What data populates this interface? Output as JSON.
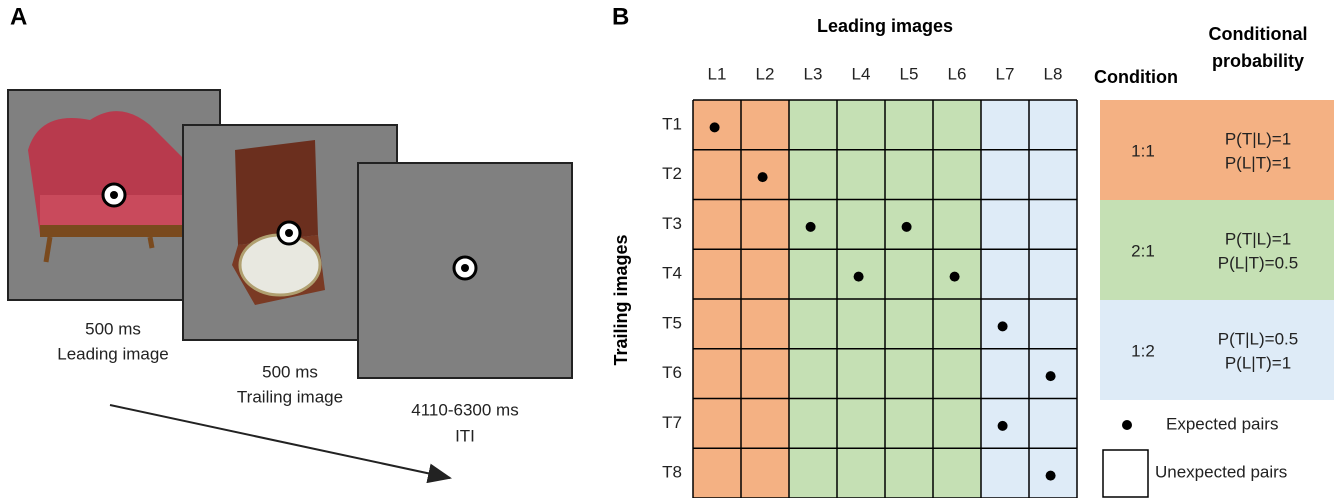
{
  "panel_a": {
    "label": "A",
    "frames": [
      {
        "duration": "500 ms",
        "caption": "Leading image"
      },
      {
        "duration": "500 ms",
        "caption": "Trailing image"
      },
      {
        "duration": "4110-6300 ms",
        "caption": "ITI"
      }
    ]
  },
  "panel_b": {
    "label": "B",
    "column_title": "Leading images",
    "row_title": "Trailing images",
    "columns": [
      "L1",
      "L2",
      "L3",
      "L4",
      "L5",
      "L6",
      "L7",
      "L8"
    ],
    "rows": [
      "T1",
      "T2",
      "T3",
      "T4",
      "T5",
      "T6",
      "T7",
      "T8"
    ],
    "legend": {
      "condition_header": "Condition",
      "probability_header": [
        "Conditional",
        "probability"
      ],
      "conditions": [
        {
          "ratio": "1:1",
          "probabilities": [
            "P(T|L)=1",
            "P(L|T)=1"
          ]
        },
        {
          "ratio": "2:1",
          "probabilities": [
            "P(T|L)=1",
            "P(L|T)=0.5"
          ]
        },
        {
          "ratio": "1:2",
          "probabilities": [
            "P(T|L)=0.5",
            "P(L|T)=1"
          ]
        }
      ],
      "expected": "Expected pairs",
      "unexpected": "Unexpected pairs"
    }
  }
}
